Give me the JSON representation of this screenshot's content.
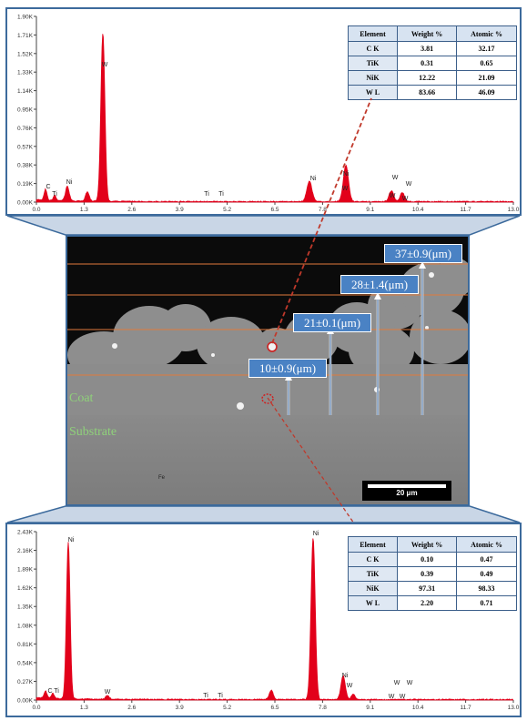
{
  "spectrum_top": {
    "y_ticks": [
      "0.00K",
      "0.19K",
      "0.38K",
      "0.57K",
      "0.76K",
      "0.95K",
      "1.14K",
      "1.33K",
      "1.52K",
      "1.71K",
      "1.90K"
    ],
    "x_ticks": [
      "0.0",
      "1.3",
      "2.6",
      "3.9",
      "5.2",
      "6.5",
      "7.8",
      "9.1",
      "10.4",
      "11.7",
      "13.0"
    ],
    "peak_labels": [
      "C",
      "Ti",
      "Ni",
      "W",
      "Ti",
      "Ti",
      "Ni",
      "W",
      "Ni",
      "W",
      "W",
      "W",
      "W"
    ],
    "table": {
      "headers": [
        "Element",
        "Weight %",
        "Atomic %"
      ],
      "rows": [
        [
          "C K",
          "3.81",
          "32.17"
        ],
        [
          "TiK",
          "0.31",
          "0.65"
        ],
        [
          "NiK",
          "12.22",
          "21.09"
        ],
        [
          "W L",
          "83.66",
          "46.09"
        ]
      ]
    }
  },
  "micrograph": {
    "measurements": [
      "10±0.9(μm)",
      "21±0.1(μm)",
      "28±1.4(μm)",
      "37±0.9(μm)"
    ],
    "coat_label": "Coat",
    "substrate_label": "Substrate",
    "scale_bar": "20 μm",
    "small_label": "Fe"
  },
  "spectrum_bottom": {
    "y_ticks": [
      "0.00K",
      "0.27K",
      "0.54K",
      "0.81K",
      "1.08K",
      "1.35K",
      "1.62K",
      "1.89K",
      "2.16K",
      "2.43K"
    ],
    "x_ticks": [
      "0.0",
      "1.3",
      "2.6",
      "3.9",
      "5.2",
      "6.5",
      "7.8",
      "9.1",
      "10.4",
      "11.7",
      "13.0"
    ],
    "peak_labels": [
      "C",
      "Ti",
      "Ni",
      "W",
      "Ti",
      "Ti",
      "Ni",
      "Ni",
      "W",
      "W",
      "W",
      "W",
      "W"
    ],
    "table": {
      "headers": [
        "Element",
        "Weight %",
        "Atomic %"
      ],
      "rows": [
        [
          "C K",
          "0.10",
          "0.47"
        ],
        [
          "TiK",
          "0.39",
          "0.49"
        ],
        [
          "NiK",
          "97.31",
          "98.33"
        ],
        [
          "W L",
          "2.20",
          "0.71"
        ]
      ]
    }
  },
  "colors": {
    "frame": "#3c6a9c",
    "spectrum": "#e2001a",
    "label_box": "#4a82c4",
    "coat_text": "#8fd17a",
    "layer_line": "#e07a3c"
  }
}
